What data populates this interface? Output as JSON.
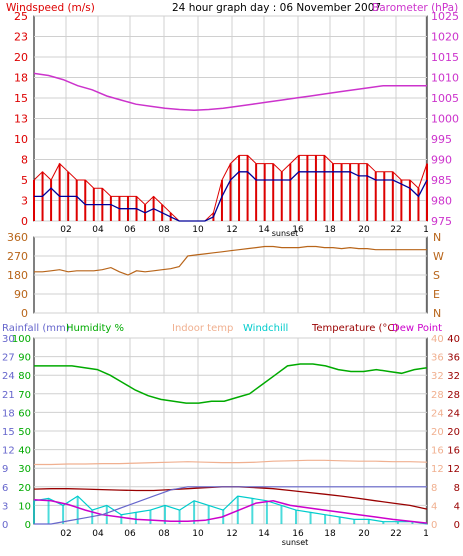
{
  "header": {
    "left_label": "Windspeed (m/s)",
    "title": "24 hour graph day : 06 November 2007",
    "right_label": "Barometer (hPa)"
  },
  "colors": {
    "windspeed": "#dd0000",
    "windavg": "#000099",
    "barometer": "#cc33cc",
    "direction": "#b8651a",
    "rainfall": "#6666cc",
    "humidity": "#00aa00",
    "indoor": "#f0b090",
    "windchill": "#00cccc",
    "temperature": "#990000",
    "dewpoint": "#cc00cc",
    "grid": "#d0d0d0"
  },
  "chart_data": [
    {
      "type": "line",
      "name": "wind-barometer",
      "x_ticks": [
        "02",
        "04",
        "06",
        "08",
        "10",
        "12",
        "14",
        "16",
        "18",
        "20",
        "22",
        "1"
      ],
      "x_note": "sunset",
      "left_axis": {
        "label": "Windspeed (m/s)",
        "ticks": [
          "0",
          "3",
          "5",
          "8",
          "10",
          "13",
          "15",
          "18",
          "20",
          "23",
          "25"
        ],
        "range": [
          0,
          25
        ]
      },
      "right_axis": {
        "label": "Barometer (hPa)",
        "ticks": [
          "975",
          "980",
          "985",
          "990",
          "995",
          "1000",
          "1005",
          "1010",
          "1015",
          "1020",
          "1025"
        ],
        "range": [
          975,
          1025
        ]
      },
      "series": [
        {
          "name": "Windspeed (m/s)",
          "key": "gust",
          "values": [
            5,
            6,
            5,
            7,
            6,
            5,
            5,
            4,
            4,
            3,
            3,
            3,
            3,
            2,
            3,
            2,
            1,
            0,
            0,
            0,
            0,
            1,
            5,
            7,
            8,
            8,
            7,
            7,
            7,
            6,
            7,
            8,
            8,
            8,
            8,
            7,
            7,
            7,
            7,
            7,
            6,
            6,
            6,
            5,
            5,
            4,
            7
          ]
        },
        {
          "name": "Wind average",
          "key": "avg",
          "values": [
            3,
            3,
            4,
            3,
            3,
            3,
            2,
            2,
            2,
            2,
            1.5,
            1.5,
            1.5,
            1,
            1.5,
            1,
            0.5,
            0,
            0,
            0,
            0,
            0.5,
            3,
            5,
            6,
            6,
            5,
            5,
            5,
            5,
            5,
            6,
            6,
            6,
            6,
            6,
            6,
            6,
            5.5,
            5.5,
            5,
            5,
            5,
            4.5,
            4,
            3,
            5
          ]
        },
        {
          "name": "Barometer (hPa)",
          "key": "baro",
          "values": [
            1011,
            1010.5,
            1009.5,
            1008,
            1007,
            1005.5,
            1004.5,
            1003.5,
            1003,
            1002.5,
            1002.2,
            1002,
            1002.2,
            1002.5,
            1003,
            1003.5,
            1004,
            1004.5,
            1005,
            1005.5,
            1006,
            1006.5,
            1007,
            1007.5,
            1008,
            1008,
            1008,
            1008
          ]
        }
      ]
    },
    {
      "type": "line",
      "name": "wind-direction",
      "left_axis": {
        "ticks": [
          "360",
          "270",
          "180",
          "90",
          "0"
        ],
        "range": [
          0,
          360
        ]
      },
      "right_axis": {
        "ticks": [
          "N",
          "W",
          "S",
          "E",
          "N"
        ]
      },
      "series": [
        {
          "name": "Wind direction",
          "values": [
            195,
            195,
            200,
            205,
            195,
            200,
            200,
            200,
            205,
            215,
            195,
            180,
            200,
            195,
            200,
            205,
            210,
            220,
            270,
            275,
            280,
            285,
            290,
            295,
            300,
            305,
            310,
            315,
            315,
            310,
            310,
            310,
            315,
            315,
            310,
            310,
            305,
            310,
            305,
            305,
            300,
            300,
            300,
            300,
            300,
            300,
            300
          ]
        }
      ]
    },
    {
      "type": "line",
      "name": "rain-humidity-temperature",
      "x_ticks": [
        "02",
        "04",
        "06",
        "08",
        "10",
        "12",
        "14",
        "16",
        "18",
        "20",
        "22",
        "1"
      ],
      "x_note": "sunset",
      "legend": [
        "Rainfall (mm)",
        "Humidity %",
        "Indoor temp",
        "Windchill",
        "Temperature (°C)",
        "Dew Point"
      ],
      "rain_axis": {
        "ticks": [
          "30",
          "27",
          "24",
          "21",
          "18",
          "15",
          "12",
          "9",
          "6",
          "3",
          "0"
        ],
        "range": [
          0,
          30
        ]
      },
      "humidity_axis": {
        "ticks": [
          "100",
          "90",
          "80",
          "70",
          "60",
          "50",
          "40",
          "30",
          "20",
          "10",
          "0"
        ],
        "range": [
          0,
          100
        ]
      },
      "temp_axis_a": {
        "ticks": [
          "40",
          "36",
          "32",
          "28",
          "24",
          "20",
          "16",
          "12",
          "8",
          "4",
          "0"
        ],
        "range": [
          0,
          40
        ]
      },
      "temp_axis_b": {
        "ticks": [
          "40",
          "36",
          "32",
          "28",
          "24",
          "20",
          "16",
          "12",
          "8",
          "4",
          "0"
        ],
        "range": [
          0,
          40
        ]
      },
      "series": [
        {
          "name": "Humidity %",
          "key": "hum",
          "values": [
            85,
            85,
            85,
            85,
            84,
            83,
            80,
            76,
            72,
            69,
            67,
            66,
            65,
            65,
            66,
            66,
            68,
            70,
            75,
            80,
            85,
            86,
            86,
            85,
            83,
            82,
            82,
            83,
            82,
            81,
            83,
            84
          ]
        },
        {
          "name": "Indoor temp",
          "key": "indoor",
          "values": [
            12.8,
            12.8,
            12.9,
            12.9,
            13,
            13,
            13.1,
            13.2,
            13.3,
            13.4,
            13.3,
            13.2,
            13.2,
            13.3,
            13.5,
            13.6,
            13.7,
            13.7,
            13.6,
            13.5,
            13.5,
            13.4,
            13.4,
            13.3
          ]
        },
        {
          "name": "Temperature (°C)",
          "key": "temp",
          "values": [
            7.5,
            7.6,
            7.6,
            7.5,
            7.4,
            7.3,
            7.2,
            7.2,
            7.4,
            7.6,
            7.8,
            8,
            8,
            7.8,
            7.6,
            7.2,
            6.8,
            6.4,
            6,
            5.5,
            5,
            4.5,
            4,
            3.2
          ]
        },
        {
          "name": "Dew Point",
          "key": "dew",
          "values": [
            5.2,
            5,
            4.2,
            3,
            2,
            1.5,
            1,
            0.8,
            0.6,
            0.6,
            0.8,
            1.5,
            3,
            4.5,
            5,
            4,
            3.5,
            3,
            2.5,
            2,
            1.5,
            1,
            0.6,
            0.2
          ]
        },
        {
          "name": "Windchill",
          "key": "chill",
          "values": [
            5,
            5.5,
            4,
            6,
            3,
            4,
            2,
            2.5,
            3,
            4,
            3,
            5,
            4,
            3,
            6,
            5.5,
            5,
            4,
            3,
            2.5,
            2,
            1.5,
            1,
            1,
            0.5,
            0.5,
            0.5,
            0
          ]
        },
        {
          "name": "Rainfall (mm)",
          "key": "rain",
          "values": [
            0,
            0,
            0.5,
            1,
            1.5,
            2.5,
            3.5,
            4.5,
            5.5,
            6,
            6,
            6,
            6,
            6,
            6,
            6,
            6,
            6,
            6,
            6,
            6,
            6,
            6,
            6
          ]
        }
      ]
    }
  ]
}
